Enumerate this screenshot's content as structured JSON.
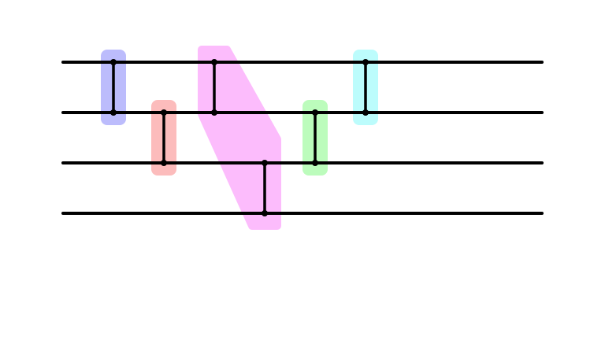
{
  "diagram": {
    "wire_count": 4,
    "wires": [
      {
        "index": 0
      },
      {
        "index": 1
      },
      {
        "index": 2
      },
      {
        "index": 3
      }
    ],
    "gates": [
      {
        "name": "gate-blue",
        "step": 1,
        "wires": [
          0,
          1
        ],
        "color": "#bcbcfc"
      },
      {
        "name": "gate-red",
        "step": 2,
        "wires": [
          1,
          2
        ],
        "color": "#fcbcbc"
      },
      {
        "name": "gate-magenta",
        "step": 3,
        "wires": [
          0,
          1
        ],
        "color": "#fcbcfc",
        "group": "magenta"
      },
      {
        "name": "gate-magenta-lower",
        "step": 4,
        "wires": [
          2,
          3
        ],
        "color": "#fcbcfc",
        "group": "magenta"
      },
      {
        "name": "gate-green",
        "step": 5,
        "wires": [
          1,
          2
        ],
        "color": "#bcfcbc"
      },
      {
        "name": "gate-cyan",
        "step": 6,
        "wires": [
          0,
          1
        ],
        "color": "#bcfcfc"
      }
    ],
    "line_color": "#000000"
  }
}
